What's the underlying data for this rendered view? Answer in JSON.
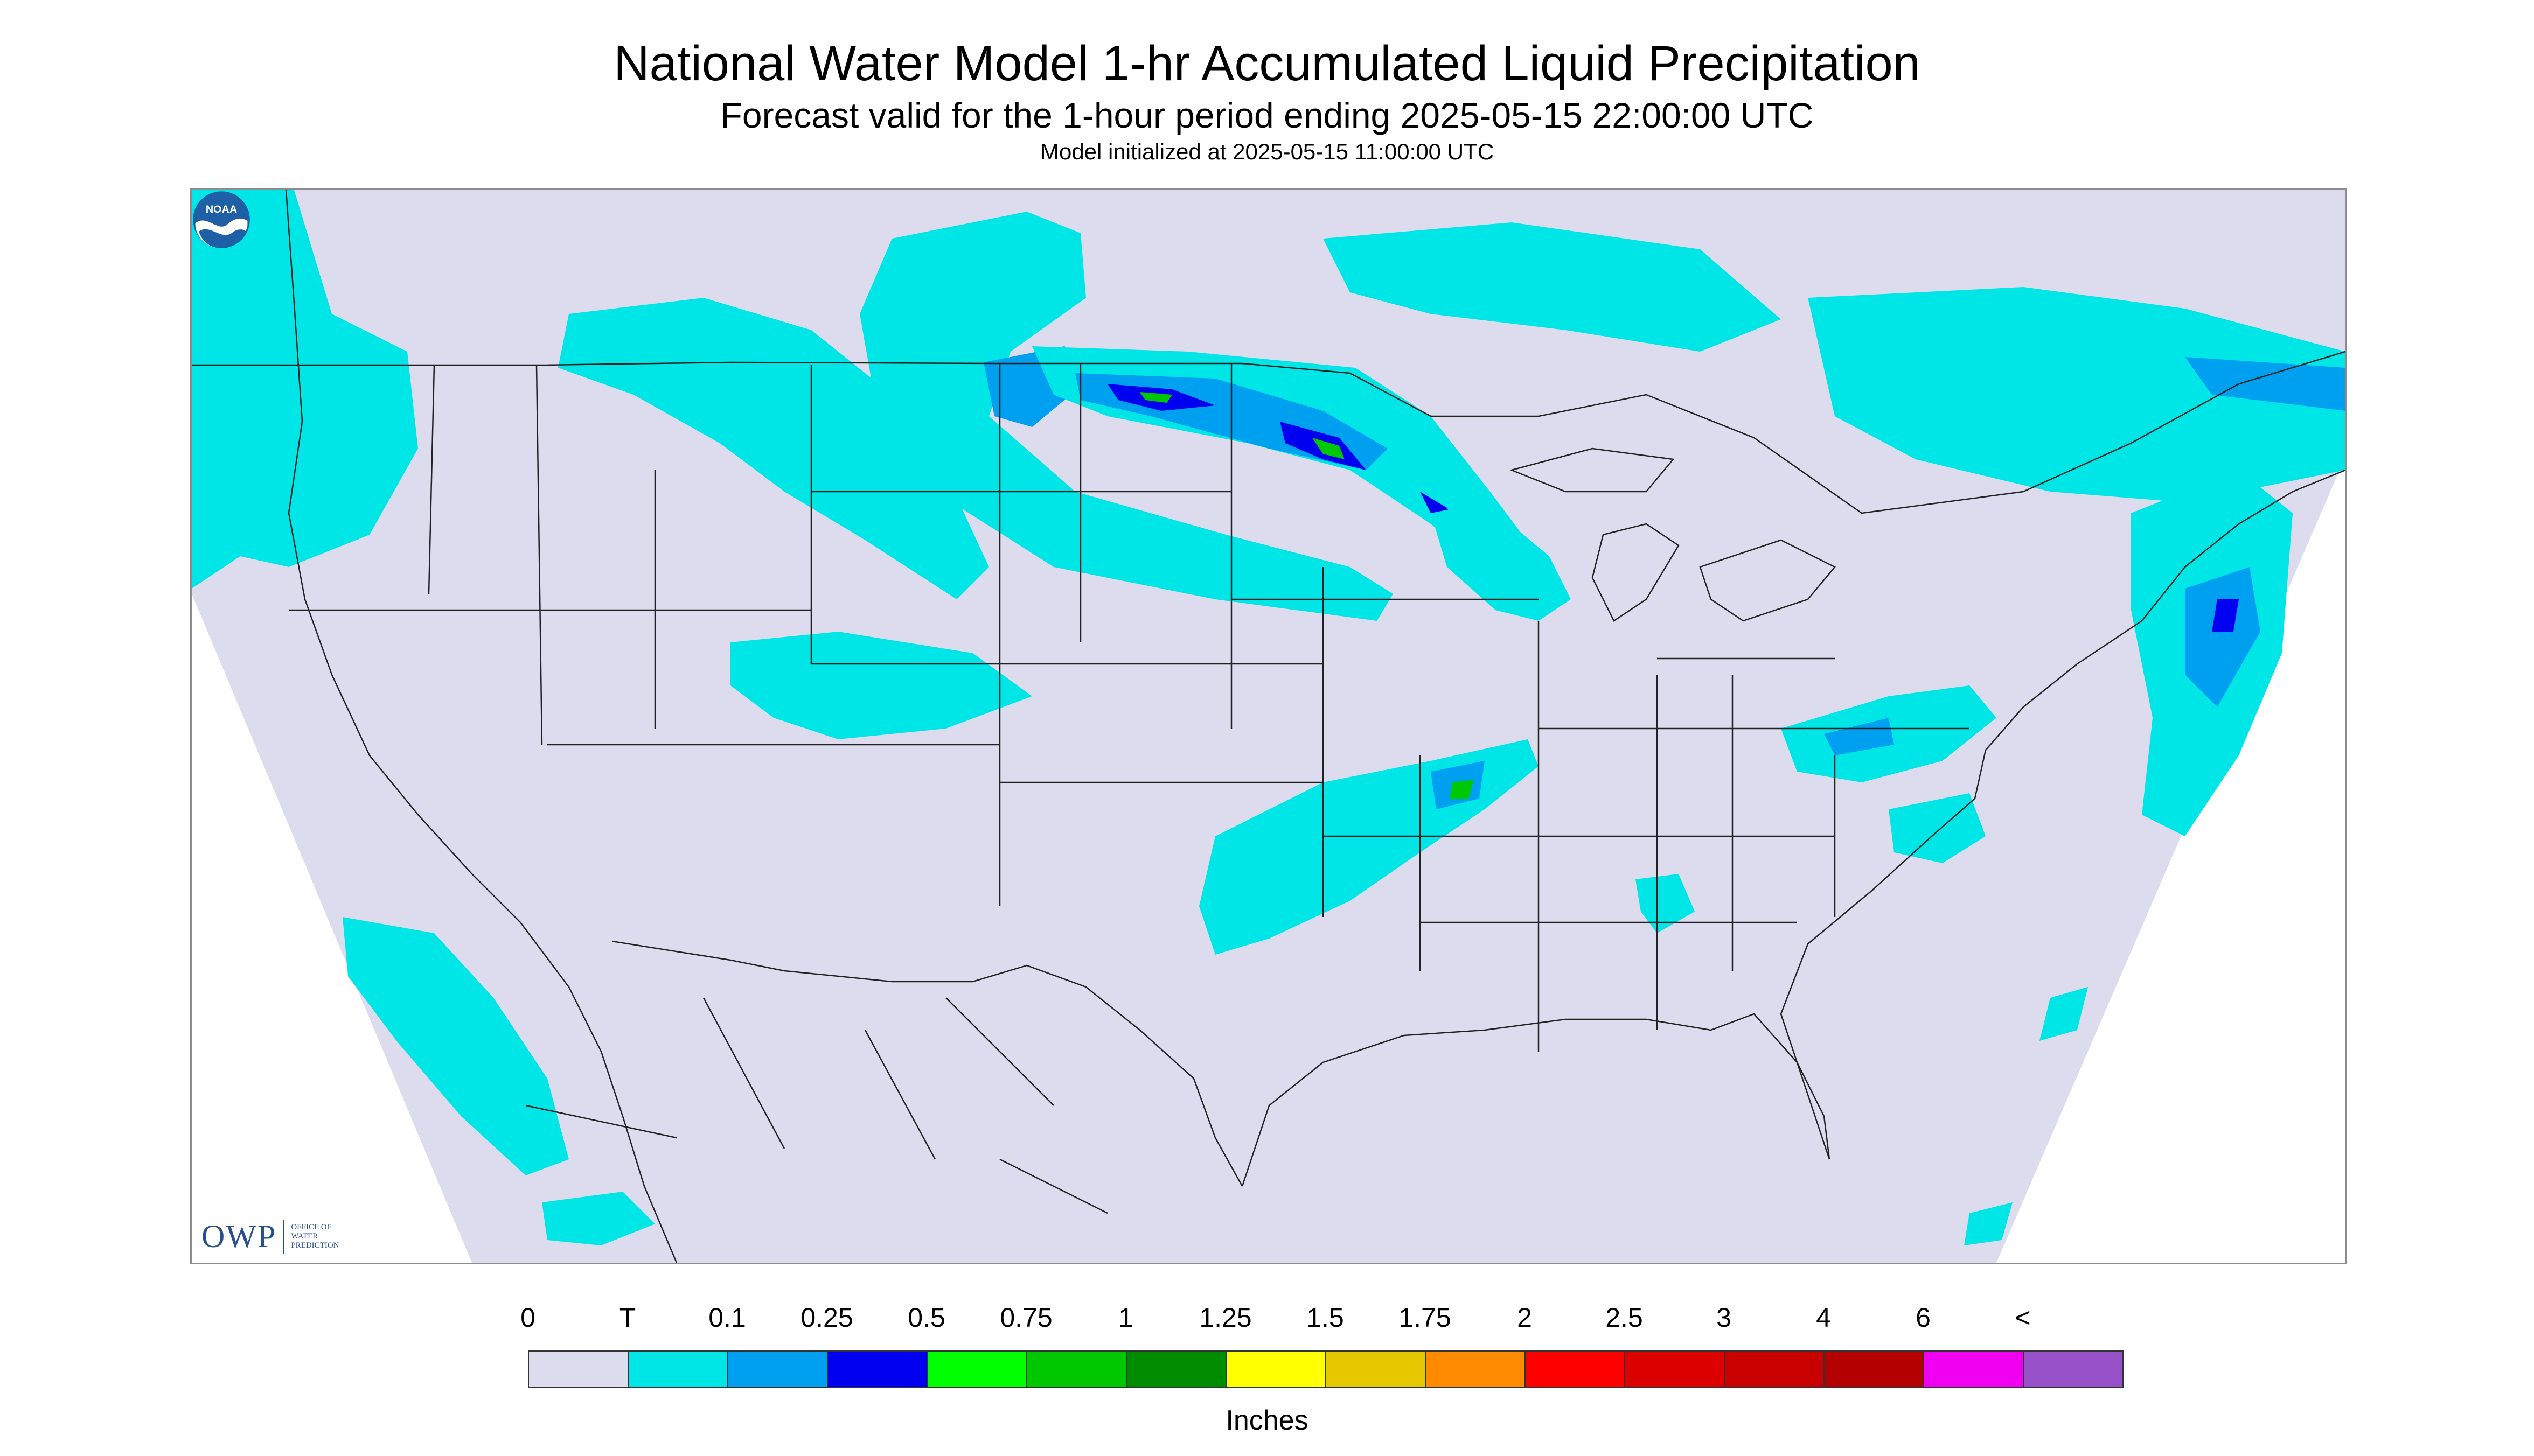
{
  "title": "National Water Model 1-hr Accumulated Liquid Precipitation",
  "subtitle": "Forecast valid for the 1-hour period ending 2025-05-15 22:00:00 UTC",
  "init_line": "Model initialized at 2025-05-15 11:00:00 UTC",
  "map": {
    "domain_color": "#dcdcee",
    "outside_color": "#ffffff",
    "boundary_color": "#222222",
    "logos": {
      "owp_mark": "OWP",
      "owp_text": [
        "OFFICE OF",
        "WATER",
        "PREDICTION"
      ],
      "noaa_text": "NOAA"
    }
  },
  "legend": {
    "ticks": [
      "0",
      "T",
      "0.1",
      "0.25",
      "0.5",
      "0.75",
      "1",
      "1.25",
      "1.5",
      "1.75",
      "2",
      "2.5",
      "3",
      "4",
      "6",
      "<"
    ],
    "colors": [
      "#dcdcee",
      "#00e6e6",
      "#00a0f0",
      "#0000f0",
      "#00ff00",
      "#00c800",
      "#008c00",
      "#ffff00",
      "#e6c800",
      "#ff8c00",
      "#ff0000",
      "#dc0000",
      "#c80000",
      "#b40000",
      "#f000f0",
      "#9650c8"
    ],
    "units": "Inches"
  },
  "precip_colors": {
    "trace": "#00e6e6",
    "light": "#00a0f0",
    "moderate": "#0000f0",
    "heavy": "#00c800"
  }
}
